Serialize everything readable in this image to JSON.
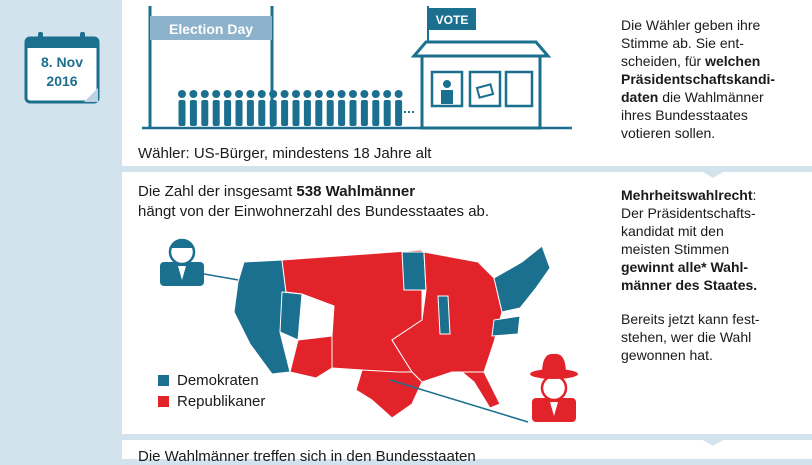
{
  "date": {
    "line1": "8. Nov",
    "line2": "2016"
  },
  "banner": {
    "label": "Election Day"
  },
  "booth": {
    "sign": "VOTE"
  },
  "voters_caption": "Wähler: US-Bürger, mindestens 18 Jahre alt",
  "electors_text": {
    "part1": "Die Zahl der insgesamt ",
    "bold": "538 Wahlmänner",
    "part2": "hängt von der Einwohnerzahl des Bundesstaates ab."
  },
  "legend": [
    {
      "label": "Demokraten",
      "color": "#1b6f8f"
    },
    {
      "label": "Republikaner",
      "color": "#e3232a"
    }
  ],
  "bottom_caption": "Die Wahlmänner treffen sich in den Bundesstaaten",
  "right_top": {
    "t1": "Die Wähler geben ihre",
    "t2": "Stimme ab. Sie ent-",
    "t3": "scheiden, für ",
    "t3b": "welchen",
    "t4b": "Präsidentschaftskandi-",
    "t5b": "daten",
    "t5": " die Wahlmänner",
    "t6": "ihres Bundesstaates",
    "t7": "votieren sollen."
  },
  "right_mid": {
    "h": "Mehrheitswahlrecht",
    "h_colon": ":",
    "l1": "Der Präsidentschafts-",
    "l2": "kandidat mit den",
    "l3": "meisten Stimmen",
    "l4b": "gewinnt alle* Wahl-",
    "l5b": "männer des Staates.",
    "l6": "Bereits jetzt kann fest-",
    "l7": "stehen, wer die Wahl",
    "l8": "gewonnen hat."
  },
  "colors": {
    "accent": "#1b6f8f",
    "red": "#e3232a",
    "bg": "#d3e3ee"
  }
}
